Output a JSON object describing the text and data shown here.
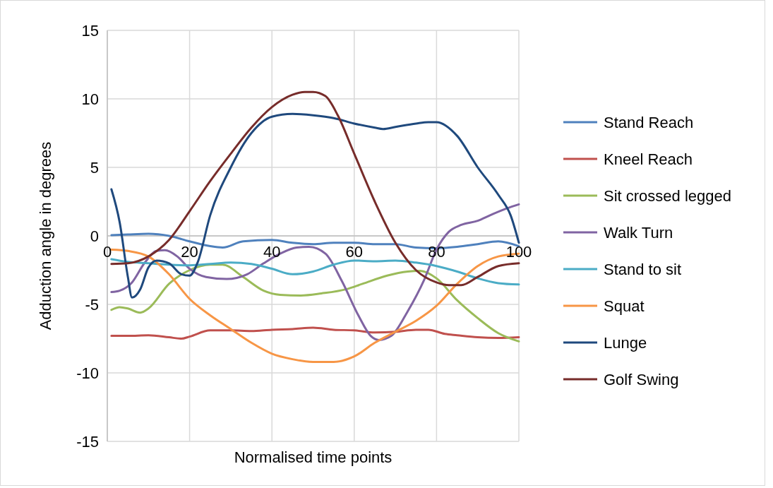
{
  "chart_data": {
    "type": "line",
    "xlabel": "Normalised time points",
    "ylabel": "Adduction angle in degrees",
    "xlim": [
      0,
      100
    ],
    "xticks": [
      0,
      20,
      40,
      60,
      80,
      100
    ],
    "ylim": [
      -15,
      15
    ],
    "yticks": [
      -15,
      -10,
      -5,
      0,
      5,
      10,
      15
    ],
    "grid": true,
    "legend": "right",
    "marker": "none",
    "line_style": "solid",
    "series": [
      {
        "name": "Stand Reach",
        "color": "#4f81bd",
        "x": [
          1,
          5,
          10,
          15,
          20,
          25,
          28,
          33,
          40,
          45,
          50,
          55,
          60,
          65,
          70,
          75,
          80,
          85,
          90,
          95,
          100
        ],
        "values": [
          0.05,
          0.1,
          0.15,
          0,
          -0.4,
          -0.75,
          -0.85,
          -0.4,
          -0.3,
          -0.5,
          -0.6,
          -0.5,
          -0.5,
          -0.6,
          -0.6,
          -0.85,
          -0.9,
          -0.8,
          -0.6,
          -0.4,
          -0.75
        ]
      },
      {
        "name": "Kneel Reach",
        "color": "#c0504d",
        "x": [
          1,
          5,
          10,
          15,
          18,
          20,
          25,
          30,
          35,
          40,
          45,
          50,
          55,
          60,
          65,
          70,
          75,
          78,
          82,
          85,
          90,
          95,
          100
        ],
        "values": [
          -7.3,
          -7.3,
          -7.25,
          -7.4,
          -7.5,
          -7.35,
          -6.9,
          -6.9,
          -6.95,
          -6.85,
          -6.8,
          -6.7,
          -6.85,
          -6.9,
          -7.05,
          -7,
          -6.85,
          -6.85,
          -7.15,
          -7.25,
          -7.4,
          -7.45,
          -7.4
        ]
      },
      {
        "name": "Sit crossed legged",
        "color": "#9bbb59",
        "x": [
          1,
          3,
          5,
          8,
          10,
          15,
          20,
          25,
          28,
          33,
          38,
          42,
          47,
          52,
          58,
          62,
          68,
          73,
          76,
          80,
          85,
          90,
          95,
          100
        ],
        "values": [
          -5.4,
          -5.2,
          -5.3,
          -5.6,
          -5.3,
          -3.5,
          -2.5,
          -2.1,
          -2.1,
          -3,
          -4,
          -4.3,
          -4.35,
          -4.2,
          -3.9,
          -3.5,
          -2.9,
          -2.6,
          -2.55,
          -3.1,
          -4.7,
          -6,
          -7.1,
          -7.7
        ]
      },
      {
        "name": "Walk Turn",
        "color": "#8064a2",
        "x": [
          1,
          3,
          6,
          9,
          12,
          14,
          17,
          20,
          24,
          29,
          34,
          38,
          42,
          46,
          49,
          53,
          57,
          61,
          64,
          66,
          69,
          73,
          77,
          80,
          83,
          86,
          90,
          93,
          97,
          100
        ],
        "values": [
          -4.1,
          -4,
          -3.4,
          -2,
          -1.1,
          -1.05,
          -1.5,
          -2.4,
          -3,
          -3.15,
          -2.8,
          -2,
          -1.3,
          -0.85,
          -0.8,
          -1.3,
          -3.3,
          -5.8,
          -7.3,
          -7.6,
          -7.3,
          -5.5,
          -3.2,
          -1,
          0.3,
          0.8,
          1.1,
          1.5,
          2,
          2.3
        ]
      },
      {
        "name": "Stand to sit",
        "color": "#4bacc6",
        "x": [
          1,
          5,
          10,
          15,
          20,
          25,
          30,
          35,
          40,
          45,
          50,
          55,
          60,
          65,
          70,
          75,
          80,
          85,
          90,
          95,
          100
        ],
        "values": [
          -1.7,
          -1.9,
          -2,
          -2.1,
          -2.15,
          -2.05,
          -1.95,
          -2.05,
          -2.4,
          -2.8,
          -2.6,
          -2.1,
          -1.8,
          -1.85,
          -1.8,
          -1.95,
          -2.2,
          -2.6,
          -3.1,
          -3.45,
          -3.55
        ]
      },
      {
        "name": "Squat",
        "color": "#f79646",
        "x": [
          1,
          5,
          10,
          15,
          20,
          25,
          30,
          35,
          40,
          45,
          50,
          55,
          60,
          65,
          70,
          75,
          80,
          85,
          90,
          95,
          100
        ],
        "values": [
          -1,
          -1.1,
          -1.5,
          -2.8,
          -4.6,
          -5.8,
          -6.8,
          -7.8,
          -8.6,
          -9,
          -9.2,
          -9.2,
          -8.8,
          -7.8,
          -7,
          -6.2,
          -5.1,
          -3.5,
          -2.2,
          -1.5,
          -1.3
        ]
      },
      {
        "name": "Lunge",
        "color": "#1f497d",
        "x": [
          1,
          3,
          5,
          6,
          8,
          10,
          12,
          15,
          18,
          20,
          22,
          25,
          30,
          35,
          40,
          45,
          50,
          55,
          60,
          65,
          67,
          70,
          75,
          78,
          80,
          85,
          90,
          95,
          98,
          100
        ],
        "values": [
          3.4,
          1,
          -3,
          -4.5,
          -3.9,
          -2.3,
          -1.8,
          -2,
          -2.8,
          -2.9,
          -1.9,
          1.5,
          5,
          7.5,
          8.7,
          8.9,
          8.8,
          8.6,
          8.2,
          7.9,
          7.8,
          7.95,
          8.2,
          8.3,
          8.3,
          7.3,
          5,
          3,
          1.5,
          -0.5
        ]
      },
      {
        "name": "Golf Swing",
        "color": "#772c2a",
        "x": [
          1,
          5,
          10,
          15,
          20,
          25,
          30,
          35,
          40,
          45,
          48,
          50,
          53,
          56,
          60,
          65,
          70,
          75,
          80,
          83,
          86,
          90,
          95,
          100
        ],
        "values": [
          -2.05,
          -2,
          -1.5,
          -0.3,
          1.8,
          4,
          6,
          7.9,
          9.4,
          10.3,
          10.5,
          10.5,
          10.2,
          8.8,
          6,
          2.5,
          -0.5,
          -2.5,
          -3.4,
          -3.6,
          -3.6,
          -3,
          -2.2,
          -2
        ]
      }
    ]
  }
}
